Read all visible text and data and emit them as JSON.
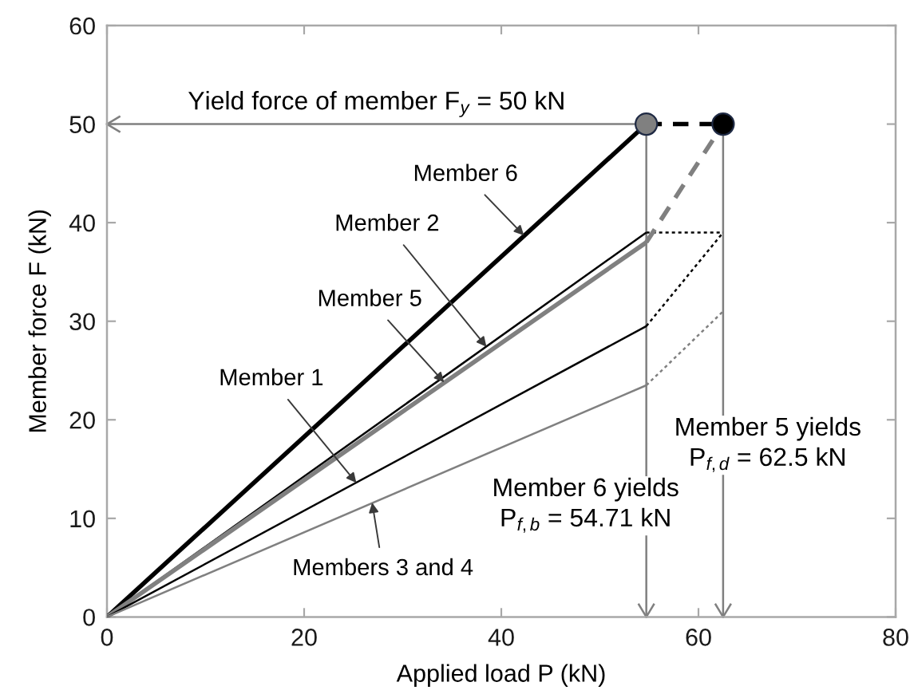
{
  "chart_data": {
    "type": "line",
    "xlabel": "Applied load P (kN)",
    "ylabel": "Member force F (kN)",
    "xlim": [
      0,
      80
    ],
    "ylim": [
      0,
      60
    ],
    "xticks": [
      0,
      20,
      40,
      60,
      80
    ],
    "yticks": [
      0,
      10,
      20,
      30,
      40,
      50,
      60
    ],
    "series": [
      {
        "color": "#000000",
        "x": [
          0,
          54.71
        ],
        "values": [
          0,
          50
        ],
        "line_style": "solid"
      },
      {
        "color": "#000000",
        "x": [
          54.71,
          62.5
        ],
        "values": [
          50,
          50
        ],
        "line_style": "dashed"
      },
      {
        "color": "#000000",
        "x": [
          0,
          54.71
        ],
        "values": [
          0,
          39
        ],
        "line_style": "solid"
      },
      {
        "color": "#000000",
        "x": [
          54.71,
          62.5
        ],
        "values": [
          39,
          39
        ],
        "line_style": "dotted"
      },
      {
        "color": "#808080",
        "x": [
          0,
          54.71
        ],
        "values": [
          0,
          38
        ],
        "line_style": "solid"
      },
      {
        "color": "#808080",
        "x": [
          54.71,
          62.5
        ],
        "values": [
          38,
          50
        ],
        "line_style": "dashed"
      },
      {
        "color": "#000000",
        "x": [
          0,
          54.71
        ],
        "values": [
          0,
          29.5
        ],
        "line_style": "solid"
      },
      {
        "color": "#000000",
        "x": [
          54.71,
          62.5
        ],
        "values": [
          29.5,
          39
        ],
        "line_style": "dotted"
      },
      {
        "color": "#808080",
        "x": [
          0,
          54.71
        ],
        "values": [
          0,
          23.5
        ],
        "line_style": "solid"
      },
      {
        "color": "#808080",
        "x": [
          54.71,
          62.5
        ],
        "values": [
          23.5,
          31
        ],
        "line_style": "dotted"
      },
      {
        "type": "scatter",
        "x": [
          54.71,
          62.5
        ],
        "values": [
          50,
          50
        ],
        "colors": [
          "#808080",
          "#000000"
        ],
        "marker": "circle"
      }
    ],
    "ref_lines": [
      {
        "axis": "y",
        "value": 50,
        "label": "Yield force of member F$_{y}$ = 50 kN",
        "color": "#808080"
      },
      {
        "axis": "x",
        "value": 54.71,
        "label": "Member 6 yields\nP$_{f,b}$ = 54.71 kN",
        "color": "#808080"
      },
      {
        "axis": "x",
        "value": 62.5,
        "label": "Member 5 yields\nP$_{f,d}$ = 62.5 kN",
        "color": "#808080"
      }
    ],
    "annotations": [
      {
        "text": "Member 6",
        "x": 42.3,
        "y": 38.7
      },
      {
        "text": "Member 2",
        "x": 38.5,
        "y": 27.4
      },
      {
        "text": "Member 5",
        "x": 34.2,
        "y": 23.8
      },
      {
        "text": "Member 1",
        "x": 25.3,
        "y": 13.6
      },
      {
        "text": "Members 3 and 4",
        "x": 26.9,
        "y": 11.6
      }
    ]
  }
}
